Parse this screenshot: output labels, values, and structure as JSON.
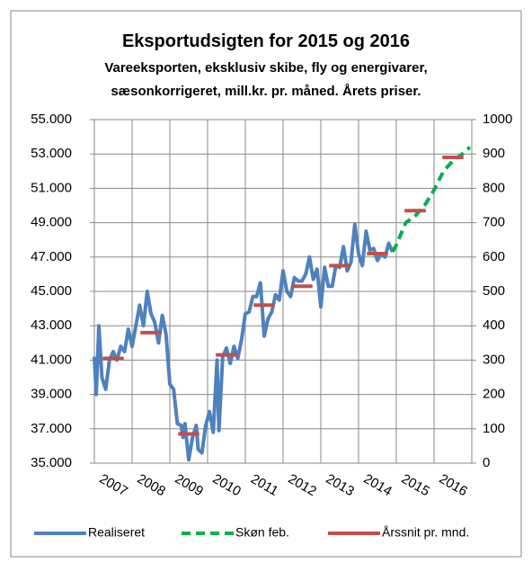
{
  "chart_data": {
    "type": "line",
    "title": "Eksportudsigten for 2015 og 2016",
    "subtitle": [
      "Vareeksporten, eksklusiv skibe, fly og energivarer,",
      "sæsonkorrigeret, mill.kr. pr. måned. Årets priser."
    ],
    "xlim": [
      2007,
      2017
    ],
    "xticks": [
      2007,
      2008,
      2009,
      2010,
      2011,
      2012,
      2013,
      2014,
      2015,
      2016
    ],
    "ylim": [
      35000,
      55000
    ],
    "yticks": [
      {
        "value": 35000,
        "label": "35.000"
      },
      {
        "value": 37000,
        "label": "37.000"
      },
      {
        "value": 39000,
        "label": "39.000"
      },
      {
        "value": 41000,
        "label": "41.000"
      },
      {
        "value": 43000,
        "label": "43.000"
      },
      {
        "value": 45000,
        "label": "45.000"
      },
      {
        "value": 47000,
        "label": "47.000"
      },
      {
        "value": 49000,
        "label": "49.000"
      },
      {
        "value": 51000,
        "label": "51.000"
      },
      {
        "value": 53000,
        "label": "53.000"
      },
      {
        "value": 55000,
        "label": "55.000"
      }
    ],
    "y2lim": [
      0,
      1000
    ],
    "y2ticks": [
      0,
      100,
      200,
      300,
      400,
      500,
      600,
      700,
      800,
      900,
      1000
    ],
    "grid": true,
    "legend": "bottom",
    "series": [
      {
        "name": "Realiseret",
        "color": "#4f81bd",
        "style": "solid",
        "x": [
          2007.0,
          2007.05,
          2007.12,
          2007.2,
          2007.3,
          2007.4,
          2007.5,
          2007.6,
          2007.7,
          2007.8,
          2007.9,
          2008.0,
          2008.1,
          2008.2,
          2008.3,
          2008.4,
          2008.5,
          2008.6,
          2008.7,
          2008.8,
          2008.9,
          2009.0,
          2009.1,
          2009.2,
          2009.3,
          2009.35,
          2009.4,
          2009.5,
          2009.6,
          2009.7,
          2009.75,
          2009.85,
          2009.95,
          2010.05,
          2010.15,
          2010.25,
          2010.3,
          2010.4,
          2010.5,
          2010.6,
          2010.7,
          2010.8,
          2010.9,
          2011.0,
          2011.1,
          2011.2,
          2011.3,
          2011.4,
          2011.5,
          2011.6,
          2011.7,
          2011.8,
          2011.9,
          2012.0,
          2012.1,
          2012.2,
          2012.3,
          2012.4,
          2012.5,
          2012.6,
          2012.7,
          2012.8,
          2012.9,
          2013.0,
          2013.1,
          2013.2,
          2013.3,
          2013.4,
          2013.5,
          2013.6,
          2013.7,
          2013.8,
          2013.9,
          2014.0,
          2014.1,
          2014.2,
          2014.3,
          2014.4,
          2014.5,
          2014.6,
          2014.7,
          2014.8,
          2014.9
        ],
        "values": [
          41200,
          39000,
          43000,
          40000,
          39300,
          41000,
          41500,
          41000,
          41800,
          41500,
          42800,
          41800,
          43000,
          44200,
          43000,
          45000,
          43700,
          43200,
          42000,
          43600,
          42500,
          39600,
          39300,
          37300,
          37200,
          36500,
          37300,
          35200,
          36500,
          37200,
          35800,
          35600,
          37200,
          38000,
          36800,
          41000,
          36900,
          41200,
          41700,
          40800,
          41800,
          41100,
          42200,
          43700,
          43800,
          44700,
          44700,
          45500,
          42400,
          43400,
          43800,
          44800,
          44500,
          46200,
          45000,
          44700,
          45800,
          45600,
          45600,
          46000,
          47000,
          45700,
          46300,
          44100,
          46400,
          45300,
          45300,
          46500,
          46400,
          47600,
          46200,
          46700,
          48900,
          47200,
          46500,
          48500,
          47400,
          47500,
          46800,
          47200,
          47000,
          47800,
          47300
        ]
      },
      {
        "name": "Skøn feb.",
        "color": "#00b050",
        "style": "dashed",
        "x": [
          2014.9,
          2015.0,
          2015.25,
          2015.5,
          2015.75,
          2016.0,
          2016.25,
          2016.5,
          2016.75,
          2016.95
        ],
        "values": [
          47300,
          47700,
          49000,
          49400,
          50000,
          50900,
          52000,
          52600,
          53000,
          53400
        ]
      },
      {
        "name": "Årssnit pr. mnd.",
        "color": "#c0504d",
        "style": "segment",
        "x": [
          2007,
          2008,
          2009,
          2010,
          2011,
          2012,
          2013,
          2014,
          2015,
          2016
        ],
        "values": [
          41100,
          42600,
          36700,
          41300,
          44200,
          45300,
          46500,
          47200,
          49700,
          52800
        ]
      }
    ]
  }
}
